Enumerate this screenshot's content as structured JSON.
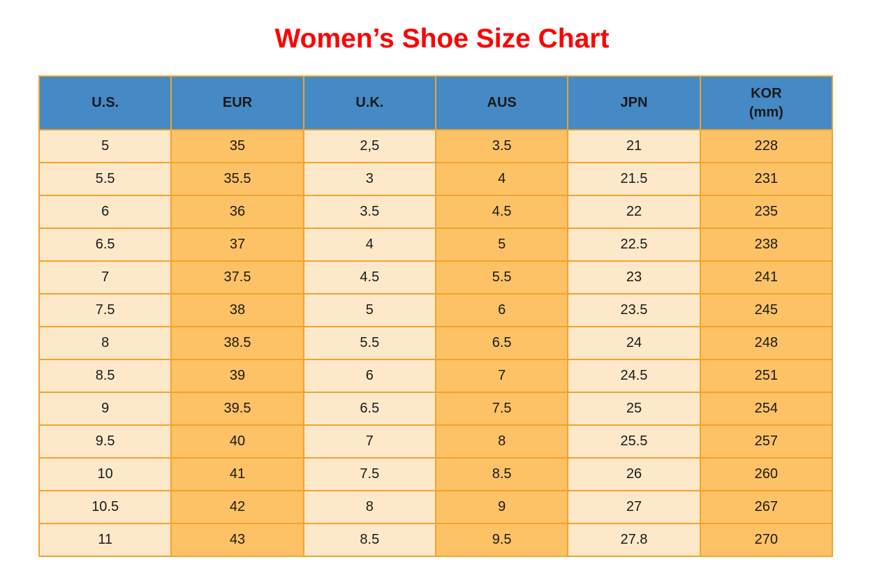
{
  "title": "Women’s Shoe Size Chart",
  "colors": {
    "title_red": "#fd0204",
    "header_blue": "#4589c5",
    "cell_cream": "#fde9ca",
    "cell_orange": "#fdc266",
    "border_orange": "#f2a32b",
    "text": "#1a1a1a"
  },
  "chart_data": {
    "type": "table",
    "title": "Women’s Shoe Size Chart",
    "columns": [
      "U.S.",
      "EUR",
      "U.K.",
      "AUS",
      "JPN",
      "KOR\n(mm)"
    ],
    "column_keys": [
      "us",
      "eur",
      "uk",
      "aus",
      "jpn",
      "kor-mm"
    ],
    "rows": [
      [
        "5",
        "35",
        "2,5",
        "3.5",
        "21",
        "228"
      ],
      [
        "5.5",
        "35.5",
        "3",
        "4",
        "21.5",
        "231"
      ],
      [
        "6",
        "36",
        "3.5",
        "4.5",
        "22",
        "235"
      ],
      [
        "6.5",
        "37",
        "4",
        "5",
        "22.5",
        "238"
      ],
      [
        "7",
        "37.5",
        "4.5",
        "5.5",
        "23",
        "241"
      ],
      [
        "7.5",
        "38",
        "5",
        "6",
        "23.5",
        "245"
      ],
      [
        "8",
        "38.5",
        "5.5",
        "6.5",
        "24",
        "248"
      ],
      [
        "8.5",
        "39",
        "6",
        "7",
        "24.5",
        "251"
      ],
      [
        "9",
        "39.5",
        "6.5",
        "7.5",
        "25",
        "254"
      ],
      [
        "9.5",
        "40",
        "7",
        "8",
        "25.5",
        "257"
      ],
      [
        "10",
        "41",
        "7.5",
        "8.5",
        "26",
        "260"
      ],
      [
        "10.5",
        "42",
        "8",
        "9",
        "27",
        "267"
      ],
      [
        "11",
        "43",
        "8.5",
        "9.5",
        "27.8",
        "270"
      ]
    ],
    "layout": {
      "column_fill_pattern": [
        "cream",
        "orange",
        "cream",
        "orange",
        "cream",
        "orange"
      ],
      "header_fill": "blue",
      "grid": true
    }
  }
}
